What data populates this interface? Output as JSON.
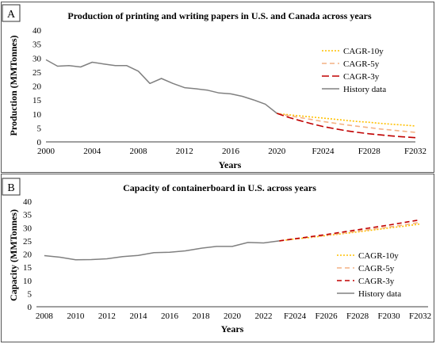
{
  "chart_data": [
    {
      "type": "line",
      "panel_label": "A",
      "title": "Production of printing and writing papers in U.S. and Canada across years",
      "xlabel": "Years",
      "ylabel": "Production (MMTonnes)",
      "ylim": [
        0,
        40
      ],
      "yticks": [
        0,
        5,
        10,
        15,
        20,
        25,
        30,
        35,
        40
      ],
      "xlim": [
        2000,
        2032
      ],
      "xtick_values": [
        2000,
        2004,
        2008,
        2012,
        2016,
        2020,
        2024,
        2028,
        2032
      ],
      "xtick_labels": [
        "2000",
        "2004",
        "2008",
        "2012",
        "2016",
        "2020",
        "F2024",
        "F2028",
        "F2032"
      ],
      "legend_position": "right",
      "grid": false,
      "series": [
        {
          "name": "CAGR-10y",
          "color": "#FFC000",
          "style": "dotted",
          "x": [
            2020,
            2021,
            2022,
            2023,
            2024,
            2025,
            2026,
            2027,
            2028,
            2029,
            2030,
            2031,
            2032
          ],
          "y": [
            10.2,
            9.7,
            9.3,
            8.9,
            8.5,
            8.1,
            7.7,
            7.3,
            7.0,
            6.6,
            6.3,
            6.0,
            5.7
          ]
        },
        {
          "name": "CAGR-5y",
          "color": "#F4B183",
          "style": "dashed",
          "x": [
            2020,
            2021,
            2022,
            2023,
            2024,
            2025,
            2026,
            2027,
            2028,
            2029,
            2030,
            2031,
            2032
          ],
          "y": [
            10.2,
            9.4,
            8.7,
            8.0,
            7.3,
            6.7,
            6.1,
            5.6,
            5.1,
            4.6,
            4.2,
            3.8,
            3.4
          ]
        },
        {
          "name": "CAGR-3y",
          "color": "#C00000",
          "style": "longdash",
          "x": [
            2020,
            2021,
            2022,
            2023,
            2024,
            2025,
            2026,
            2027,
            2028,
            2029,
            2030,
            2031,
            2032
          ],
          "y": [
            10.2,
            8.8,
            7.6,
            6.5,
            5.5,
            4.7,
            4.0,
            3.4,
            2.9,
            2.5,
            2.1,
            1.8,
            1.5
          ]
        },
        {
          "name": "History data",
          "color": "#808080",
          "style": "solid",
          "x": [
            2000,
            2001,
            2002,
            2003,
            2004,
            2005,
            2006,
            2007,
            2008,
            2009,
            2010,
            2011,
            2012,
            2013,
            2014,
            2015,
            2016,
            2017,
            2018,
            2019,
            2020
          ],
          "y": [
            29.4,
            27.1,
            27.3,
            26.8,
            28.5,
            27.9,
            27.3,
            27.3,
            25.3,
            20.9,
            22.7,
            20.9,
            19.4,
            19.0,
            18.5,
            17.5,
            17.2,
            16.3,
            15.0,
            13.5,
            10.2
          ]
        }
      ]
    },
    {
      "type": "line",
      "panel_label": "B",
      "title": "Capacity of containerboard in U.S. across years",
      "xlabel": "Years",
      "ylabel": "Capacity (MMTonnes)",
      "ylim": [
        0,
        40
      ],
      "yticks": [
        0,
        5,
        10,
        15,
        20,
        25,
        30,
        35,
        40
      ],
      "xlim": [
        2007.5,
        2032.5
      ],
      "xtick_values": [
        2008,
        2010,
        2012,
        2014,
        2016,
        2018,
        2020,
        2022,
        2024,
        2026,
        2028,
        2030,
        2032
      ],
      "xtick_labels": [
        "2008",
        "2010",
        "2012",
        "2014",
        "2016",
        "2018",
        "2020",
        "2022",
        "F2024",
        "F2026",
        "F2028",
        "F2030",
        "F2032"
      ],
      "legend_position": "right",
      "grid": false,
      "series": [
        {
          "name": "CAGR-10y",
          "color": "#FFC000",
          "style": "dotted",
          "x": [
            2023,
            2024,
            2025,
            2026,
            2027,
            2028,
            2029,
            2030,
            2031,
            2032
          ],
          "y": [
            25.0,
            25.7,
            26.3,
            27.0,
            27.7,
            28.4,
            29.1,
            29.9,
            30.6,
            31.4
          ]
        },
        {
          "name": "CAGR-5y",
          "color": "#F4B183",
          "style": "dashed",
          "x": [
            2023,
            2024,
            2025,
            2026,
            2027,
            2028,
            2029,
            2030,
            2031,
            2032
          ],
          "y": [
            25.0,
            25.7,
            26.4,
            27.1,
            27.9,
            28.7,
            29.5,
            30.3,
            31.1,
            32.0
          ]
        },
        {
          "name": "CAGR-3y",
          "color": "#C00000",
          "style": "dashed",
          "x": [
            2023,
            2024,
            2025,
            2026,
            2027,
            2028,
            2029,
            2030,
            2031,
            2032
          ],
          "y": [
            25.0,
            25.8,
            26.6,
            27.4,
            28.3,
            29.2,
            30.1,
            31.0,
            32.0,
            33.0
          ]
        },
        {
          "name": "History data",
          "color": "#808080",
          "style": "solid",
          "x": [
            2008,
            2009,
            2010,
            2011,
            2012,
            2013,
            2014,
            2015,
            2016,
            2017,
            2018,
            2019,
            2020,
            2021,
            2022,
            2023
          ],
          "y": [
            19.4,
            18.8,
            17.8,
            17.9,
            18.2,
            19.0,
            19.5,
            20.5,
            20.7,
            21.2,
            22.2,
            22.9,
            22.9,
            24.4,
            24.2,
            25.0
          ]
        }
      ]
    }
  ]
}
